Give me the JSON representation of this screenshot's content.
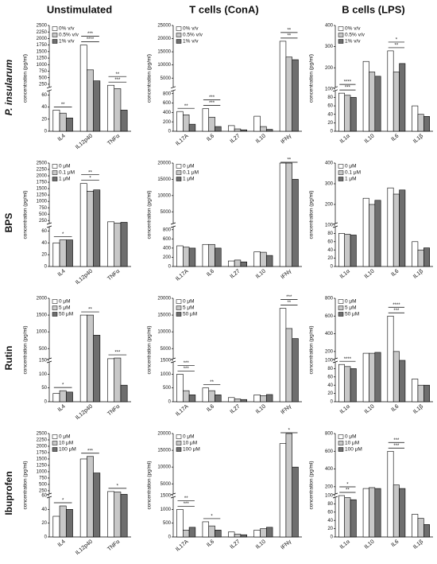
{
  "columns": [
    "Unstimulated",
    "T cells (ConA)",
    "B cells (LPS)"
  ],
  "rows": [
    "P. insularum",
    "BPS",
    "Rutin",
    "Ibuprofen"
  ],
  "chart_data": [
    {
      "type": "bar",
      "ylabel": "concentration (pg/ml)",
      "categories": [
        "IL4",
        "IL12p40",
        "TNFα"
      ],
      "series": [
        {
          "name": "0% v/v",
          "color": "#ffffff",
          "values": [
            35,
            1750,
            210
          ]
        },
        {
          "name": "0.5% v/v",
          "color": "#c8c8c8",
          "values": [
            30,
            800,
            80
          ]
        },
        {
          "name": "1% v/v",
          "color": "#6e6e6e",
          "values": [
            22,
            380,
            35
          ]
        }
      ],
      "ylim": [
        0,
        2500
      ],
      "ybreak": 70,
      "yticks": [
        0,
        20,
        40,
        60,
        250,
        500,
        750,
        1000,
        1250,
        1500,
        1750,
        2000,
        2250,
        2500
      ],
      "annotations": [
        {
          "text": "**",
          "category": "IL4"
        },
        {
          "text": "****",
          "category": "IL12p40"
        },
        {
          "text": "***",
          "category": "IL12p40"
        },
        {
          "text": "***",
          "category": "TNFα"
        },
        {
          "text": "**",
          "category": "TNFα"
        }
      ]
    },
    {
      "type": "bar",
      "ylabel": "concentration (pg/ml)",
      "categories": [
        "IL17A",
        "IL6",
        "IL27",
        "IL10",
        "IFNγ"
      ],
      "series": [
        {
          "name": "0% v/v",
          "color": "#ffffff",
          "values": [
            420,
            480,
            120,
            320,
            19000
          ]
        },
        {
          "name": "0.5% v/v",
          "color": "#c8c8c8",
          "values": [
            350,
            300,
            50,
            100,
            13000
          ]
        },
        {
          "name": "1% v/v",
          "color": "#6e6e6e",
          "values": [
            150,
            100,
            30,
            40,
            12000
          ]
        }
      ],
      "ylim": [
        0,
        25000
      ],
      "ybreak": 900,
      "yticks": [
        0,
        200,
        400,
        600,
        800,
        5000,
        10000,
        15000,
        20000,
        25000
      ],
      "annotations": [
        {
          "text": "**",
          "category": "IL17A"
        },
        {
          "text": "***",
          "category": "IL6"
        },
        {
          "text": "***",
          "category": "IL6"
        },
        {
          "text": "**",
          "category": "IFNγ"
        },
        {
          "text": "**",
          "category": "IFNγ"
        }
      ]
    },
    {
      "type": "bar",
      "ylabel": "concentration (pg/ml)",
      "categories": [
        "IL1α",
        "IL10",
        "IL6",
        "IL1β"
      ],
      "series": [
        {
          "name": "0% v/v",
          "color": "#ffffff",
          "values": [
            90,
            230,
            280,
            60
          ]
        },
        {
          "name": "0.5% v/v",
          "color": "#c8c8c8",
          "values": [
            85,
            180,
            180,
            40
          ]
        },
        {
          "name": "1% v/v",
          "color": "#6e6e6e",
          "values": [
            80,
            160,
            220,
            35
          ]
        }
      ],
      "ylim": [
        0,
        400
      ],
      "ybreak": 100,
      "yticks": [
        0,
        20,
        40,
        60,
        80,
        100,
        200,
        300,
        400
      ],
      "annotations": [
        {
          "text": "***",
          "category": "IL1α"
        },
        {
          "text": "****",
          "category": "IL1α"
        },
        {
          "text": "**",
          "category": "IL6"
        },
        {
          "text": "*",
          "category": "IL6"
        }
      ]
    },
    {
      "type": "bar",
      "ylabel": "concentration (pg/ml)",
      "categories": [
        "IL4",
        "IL12p40",
        "TNFα"
      ],
      "series": [
        {
          "name": "0 μM",
          "color": "#ffffff",
          "values": [
            40,
            1700,
            200
          ]
        },
        {
          "name": "0.1 μM",
          "color": "#c8c8c8",
          "values": [
            45,
            1400,
            150
          ]
        },
        {
          "name": "1 μM",
          "color": "#6e6e6e",
          "values": [
            45,
            1450,
            180
          ]
        }
      ],
      "ylim": [
        0,
        2500
      ],
      "ybreak": 70,
      "yticks": [
        0,
        20,
        40,
        60,
        250,
        500,
        750,
        1000,
        1250,
        1500,
        1750,
        2000,
        2250,
        2500
      ],
      "annotations": [
        {
          "text": "*",
          "category": "IL4"
        },
        {
          "text": "*",
          "category": "IL12p40"
        },
        {
          "text": "**",
          "category": "IL12p40"
        }
      ]
    },
    {
      "type": "bar",
      "ylabel": "concentration (pg/ml)",
      "categories": [
        "IL17A",
        "IL6",
        "IL27",
        "IL10",
        "IFNγ"
      ],
      "series": [
        {
          "name": "0 μM",
          "color": "#ffffff",
          "values": [
            450,
            480,
            120,
            320,
            20000
          ]
        },
        {
          "name": "0.1 μM",
          "color": "#c8c8c8",
          "values": [
            420,
            480,
            140,
            310,
            20000
          ]
        },
        {
          "name": "1 μM",
          "color": "#6e6e6e",
          "values": [
            400,
            400,
            100,
            240,
            15000
          ]
        }
      ],
      "ylim": [
        0,
        20000
      ],
      "ybreak": 900,
      "yticks": [
        0,
        200,
        400,
        600,
        800,
        5000,
        10000,
        15000,
        20000
      ],
      "annotations": [
        {
          "text": "**",
          "category": "IFNγ"
        }
      ]
    },
    {
      "type": "bar",
      "ylabel": "concentration (pg/ml)",
      "categories": [
        "IL1α",
        "IL10",
        "IL6",
        "IL1β"
      ],
      "series": [
        {
          "name": "0 μM",
          "color": "#ffffff",
          "values": [
            80,
            230,
            280,
            60
          ]
        },
        {
          "name": "0.1 μM",
          "color": "#c8c8c8",
          "values": [
            78,
            200,
            250,
            40
          ]
        },
        {
          "name": "1 μM",
          "color": "#6e6e6e",
          "values": [
            76,
            220,
            270,
            45
          ]
        }
      ],
      "ylim": [
        0,
        400
      ],
      "ybreak": 100,
      "yticks": [
        0,
        20,
        40,
        60,
        80,
        100,
        200,
        300,
        400
      ]
    },
    {
      "type": "bar",
      "ylabel": "concentration (pg/ml)",
      "categories": [
        "IL4",
        "IL12p40",
        "TNFα"
      ],
      "series": [
        {
          "name": "0 μM",
          "color": "#ffffff",
          "values": [
            30,
            1500,
            200
          ]
        },
        {
          "name": "5 μM",
          "color": "#c8c8c8",
          "values": [
            40,
            1500,
            220
          ]
        },
        {
          "name": "50 μM",
          "color": "#6e6e6e",
          "values": [
            35,
            900,
            60
          ]
        }
      ],
      "ylim": [
        0,
        2000
      ],
      "ybreak": 150,
      "yticks": [
        0,
        50,
        100,
        150,
        500,
        1000,
        1500,
        2000
      ],
      "annotations": [
        {
          "text": "*",
          "category": "IL4"
        },
        {
          "text": "**",
          "category": "IL12p40"
        },
        {
          "text": "***",
          "category": "TNFα"
        }
      ]
    },
    {
      "type": "bar",
      "ylabel": "concentration (pg/ml)",
      "categories": [
        "IL17A",
        "IL6",
        "IL27",
        "IL10",
        "IFNγ"
      ],
      "series": [
        {
          "name": "0 μM",
          "color": "#ffffff",
          "values": [
            1000,
            500,
            150,
            250,
            17000
          ]
        },
        {
          "name": "5 μM",
          "color": "#c8c8c8",
          "values": [
            400,
            400,
            100,
            220,
            11000
          ]
        },
        {
          "name": "50 μM",
          "color": "#6e6e6e",
          "values": [
            250,
            250,
            80,
            260,
            8000
          ]
        }
      ],
      "ylim": [
        0,
        20000
      ],
      "ybreak": 1500,
      "yticks": [
        0,
        500,
        1000,
        1500,
        5000,
        10000,
        15000,
        20000
      ],
      "annotations": [
        {
          "text": "***",
          "category": "IL17A"
        },
        {
          "text": "***",
          "category": "IL17A"
        },
        {
          "text": "**",
          "category": "IL6"
        },
        {
          "text": "**",
          "category": "IFNγ"
        },
        {
          "text": "***",
          "category": "IFNγ"
        }
      ]
    },
    {
      "type": "bar",
      "ylabel": "concentration (pg/ml)",
      "categories": [
        "IL1α",
        "IL10",
        "IL6",
        "IL1β"
      ],
      "series": [
        {
          "name": "0 μM",
          "color": "#ffffff",
          "values": [
            90,
            180,
            600,
            55
          ]
        },
        {
          "name": "5 μM",
          "color": "#c8c8c8",
          "values": [
            85,
            180,
            200,
            40
          ]
        },
        {
          "name": "50 μM",
          "color": "#6e6e6e",
          "values": [
            80,
            190,
            100,
            40
          ]
        }
      ],
      "ylim": [
        0,
        800
      ],
      "ybreak": 100,
      "yticks": [
        0,
        20,
        40,
        60,
        80,
        100,
        200,
        400,
        600,
        800
      ],
      "annotations": [
        {
          "text": "****",
          "category": "IL1α"
        },
        {
          "text": "***",
          "category": "IL6"
        },
        {
          "text": "****",
          "category": "IL6"
        }
      ]
    },
    {
      "type": "bar",
      "ylabel": "concentration (pg/ml)",
      "categories": [
        "IL4",
        "IL12p40",
        "TNFα"
      ],
      "series": [
        {
          "name": "0 μM",
          "color": "#ffffff",
          "values": [
            30,
            1500,
            220
          ]
        },
        {
          "name": "10 μM",
          "color": "#c8c8c8",
          "values": [
            45,
            1600,
            200
          ]
        },
        {
          "name": "100 μM",
          "color": "#6e6e6e",
          "values": [
            40,
            950,
            110
          ]
        }
      ],
      "ylim": [
        0,
        2500
      ],
      "ybreak": 60,
      "yticks": [
        0,
        20,
        40,
        60,
        250,
        500,
        750,
        1000,
        1250,
        1500,
        1750,
        2000,
        2250,
        2500
      ],
      "annotations": [
        {
          "text": "*",
          "category": "IL4"
        },
        {
          "text": "***",
          "category": "IL12p40"
        },
        {
          "text": "*",
          "category": "TNFα"
        }
      ]
    },
    {
      "type": "bar",
      "ylabel": "concentration (pg/ml)",
      "categories": [
        "IL17A",
        "IL6",
        "IL27",
        "IL10",
        "IFNγ"
      ],
      "series": [
        {
          "name": "0 μM",
          "color": "#ffffff",
          "values": [
            1000,
            550,
            180,
            250,
            17000
          ]
        },
        {
          "name": "10 μM",
          "color": "#c8c8c8",
          "values": [
            250,
            400,
            100,
            300,
            20000
          ]
        },
        {
          "name": "100 μM",
          "color": "#6e6e6e",
          "values": [
            350,
            250,
            80,
            350,
            10000
          ]
        }
      ],
      "ylim": [
        0,
        20000
      ],
      "ybreak": 1500,
      "yticks": [
        0,
        500,
        1000,
        1500,
        5000,
        10000,
        15000,
        20000
      ],
      "annotations": [
        {
          "text": "***",
          "category": "IL17A"
        },
        {
          "text": "**",
          "category": "IL17A"
        },
        {
          "text": "*",
          "category": "IL6"
        },
        {
          "text": "*",
          "category": "IFNγ"
        }
      ]
    },
    {
      "type": "bar",
      "ylabel": "concentration (pg/ml)",
      "categories": [
        "IL1α",
        "IL10",
        "IL6",
        "IL1β"
      ],
      "series": [
        {
          "name": "0 μM",
          "color": "#ffffff",
          "values": [
            100,
            180,
            600,
            55
          ]
        },
        {
          "name": "10 μM",
          "color": "#c8c8c8",
          "values": [
            95,
            190,
            220,
            45
          ]
        },
        {
          "name": "100 μM",
          "color": "#6e6e6e",
          "values": [
            90,
            180,
            180,
            30
          ]
        }
      ],
      "ylim": [
        0,
        800
      ],
      "ybreak": 100,
      "yticks": [
        0,
        20,
        40,
        60,
        80,
        100,
        200,
        400,
        600,
        800
      ],
      "annotations": [
        {
          "text": "**",
          "category": "IL1α"
        },
        {
          "text": "*",
          "category": "IL1α"
        },
        {
          "text": "***",
          "category": "IL6"
        },
        {
          "text": "***",
          "category": "IL6"
        }
      ]
    }
  ]
}
